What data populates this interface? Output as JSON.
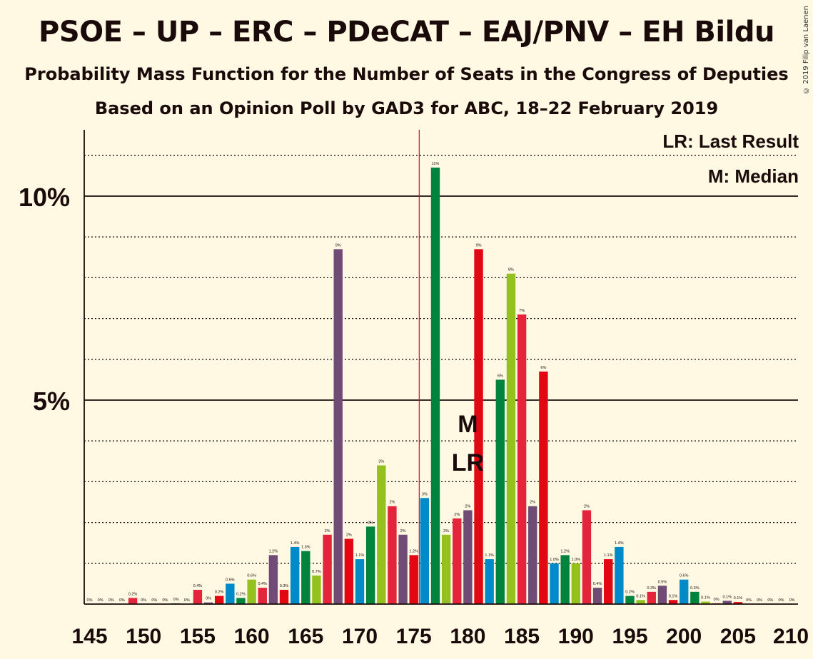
{
  "title": "PSOE – UP – ERC – PDeCAT – EAJ/PNV – EH Bildu",
  "subtitle1": "Probability Mass Function for the Number of Seats in the Congress of Deputies",
  "subtitle2": "Based on an Opinion Poll by GAD3 for ABC, 18–22 February 2019",
  "copyright": "© 2019 Filip van Laenen",
  "legend": {
    "lr": "LR: Last Result",
    "m": "M: Median"
  },
  "chart_data": {
    "type": "bar",
    "x": [
      145,
      146,
      147,
      148,
      149,
      150,
      151,
      152,
      153,
      154,
      155,
      156,
      157,
      158,
      159,
      160,
      161,
      162,
      163,
      164,
      165,
      166,
      167,
      168,
      169,
      170,
      171,
      172,
      173,
      174,
      175,
      176,
      177,
      178,
      179,
      180,
      181,
      182,
      183,
      184,
      185,
      186,
      187,
      188,
      189,
      190,
      191,
      192,
      193,
      194,
      195,
      196,
      197,
      198,
      199,
      200,
      201,
      202,
      203,
      204,
      205,
      206,
      207,
      208,
      209,
      210
    ],
    "values": [
      0,
      0,
      0,
      0,
      0.15,
      0,
      0,
      0,
      0.02,
      0,
      0.35,
      0.04,
      0.2,
      0.5,
      0.15,
      0.6,
      0.4,
      1.2,
      0.35,
      1.4,
      1.3,
      0.7,
      1.7,
      8.7,
      1.6,
      1.1,
      1.9,
      3.4,
      2.4,
      1.7,
      1.2,
      2.6,
      10.7,
      1.7,
      2.1,
      2.3,
      8.7,
      1.1,
      5.5,
      8.1,
      7.1,
      2.4,
      5.7,
      1.0,
      1.2,
      1.0,
      2.3,
      0.4,
      1.1,
      1.4,
      0.2,
      0.1,
      0.3,
      0.45,
      0.1,
      0.6,
      0.3,
      0.06,
      0.02,
      0.08,
      0.05,
      0,
      0,
      0,
      0,
      0
    ],
    "labels": [
      "0%",
      "0%",
      "0%",
      "0%",
      "0.2%",
      "0%",
      "0%",
      "0%",
      "0%",
      "0%",
      "0.4%",
      "0%",
      "0.2%",
      "0.5%",
      "0.2%",
      "0.6%",
      "0.4%",
      "1.2%",
      "0.3%",
      "1.4%",
      "1.3%",
      "0.7%",
      "2%",
      "9%",
      "2%",
      "1.1%",
      "2%",
      "3%",
      "2%",
      "2%",
      "1.2%",
      "3%",
      "11%",
      "2%",
      "2%",
      "2%",
      "9%",
      "1.1%",
      "6%",
      "8%",
      "7%",
      "2%",
      "6%",
      "1.0%",
      "1.2%",
      "1.0%",
      "2%",
      "0.4%",
      "1.1%",
      "1.4%",
      "0.2%",
      "0.1%",
      "0.3%",
      "0.5%",
      "0.1%",
      "0.6%",
      "0.3%",
      "0.1%",
      "0%",
      "0.1%",
      "0.1%",
      "0%",
      "0%",
      "0%",
      "0%",
      "0%"
    ],
    "bar_colors": [
      "#e30613",
      "#008ac9",
      "#00843d",
      "#95c11f",
      "#e3243b",
      "#6f4b75"
    ],
    "xlim": [
      145,
      210
    ],
    "ylim": [
      0,
      11.6
    ],
    "y_ticks": [
      {
        "value": 5,
        "label": "5%"
      },
      {
        "value": 10,
        "label": "10%"
      }
    ],
    "x_ticks": [
      145,
      150,
      155,
      160,
      165,
      170,
      175,
      180,
      185,
      190,
      195,
      200,
      205,
      210
    ],
    "x_tick_labels": [
      "145",
      "150",
      "155",
      "160",
      "165",
      "170",
      "175",
      "180",
      "185",
      "190",
      "195",
      "200",
      "205",
      "210"
    ],
    "majority_line": 176,
    "median": {
      "x": 180,
      "label": "M"
    },
    "last_result": {
      "x": 180,
      "label": "LR"
    },
    "grid": true
  }
}
